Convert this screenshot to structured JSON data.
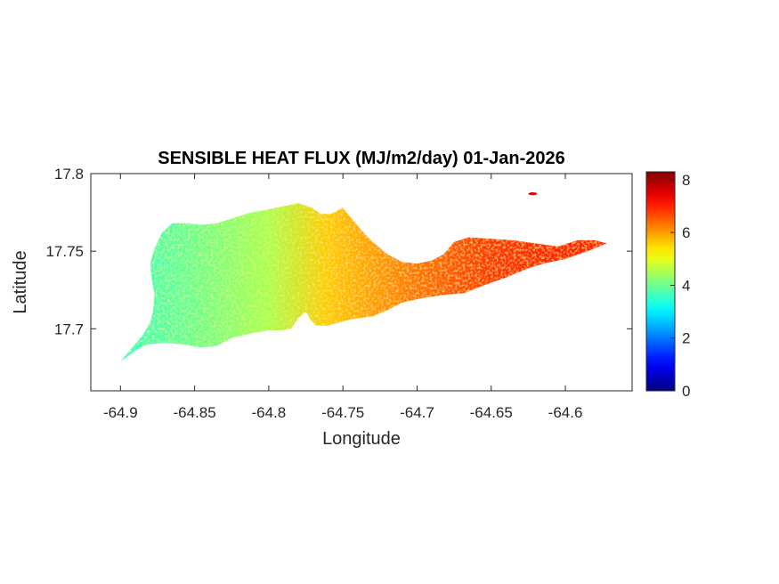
{
  "chart_data": {
    "type": "heatmap",
    "title": "SENSIBLE HEAT FLUX (MJ/m2/day) 01-Jan-2026",
    "xlabel": "Longitude",
    "ylabel": "Latitude",
    "xlim": [
      -64.92,
      -64.555
    ],
    "ylim": [
      17.66,
      17.8
    ],
    "xticks": [
      -64.9,
      -64.85,
      -64.8,
      -64.75,
      -64.7,
      -64.65,
      -64.6
    ],
    "xtick_labels": [
      "-64.9",
      "-64.85",
      "-64.8",
      "-64.75",
      "-64.7",
      "-64.65",
      "-64.6"
    ],
    "yticks": [
      17.7,
      17.75,
      17.8
    ],
    "ytick_labels": [
      "17.7",
      "17.75",
      "17.8"
    ],
    "colorbar": {
      "colormap": "jet",
      "range": [
        0,
        8.3
      ],
      "ticks": [
        0,
        2,
        4,
        6,
        8
      ],
      "tick_labels": [
        "0",
        "2",
        "4",
        "6",
        "8"
      ]
    },
    "region": {
      "outline": [
        [
          -64.9,
          17.679
        ],
        [
          -64.892,
          17.688
        ],
        [
          -64.885,
          17.696
        ],
        [
          -64.88,
          17.704
        ],
        [
          -64.878,
          17.712
        ],
        [
          -64.877,
          17.722
        ],
        [
          -64.879,
          17.732
        ],
        [
          -64.88,
          17.742
        ],
        [
          -64.877,
          17.752
        ],
        [
          -64.872,
          17.762
        ],
        [
          -64.865,
          17.768
        ],
        [
          -64.855,
          17.768
        ],
        [
          -64.845,
          17.767
        ],
        [
          -64.835,
          17.768
        ],
        [
          -64.825,
          17.771
        ],
        [
          -64.812,
          17.775
        ],
        [
          -64.8,
          17.777
        ],
        [
          -64.79,
          17.779
        ],
        [
          -64.78,
          17.781
        ],
        [
          -64.771,
          17.778
        ],
        [
          -64.765,
          17.774
        ],
        [
          -64.758,
          17.774
        ],
        [
          -64.75,
          17.778
        ],
        [
          -64.745,
          17.772
        ],
        [
          -64.738,
          17.764
        ],
        [
          -64.73,
          17.756
        ],
        [
          -64.72,
          17.748
        ],
        [
          -64.71,
          17.743
        ],
        [
          -64.7,
          17.742
        ],
        [
          -64.69,
          17.744
        ],
        [
          -64.682,
          17.748
        ],
        [
          -64.675,
          17.756
        ],
        [
          -64.665,
          17.759
        ],
        [
          -64.65,
          17.758
        ],
        [
          -64.635,
          17.757
        ],
        [
          -64.62,
          17.755
        ],
        [
          -64.605,
          17.753
        ],
        [
          -64.592,
          17.757
        ],
        [
          -64.58,
          17.757
        ],
        [
          -64.572,
          17.755
        ],
        [
          -64.585,
          17.75
        ],
        [
          -64.6,
          17.745
        ],
        [
          -64.615,
          17.742
        ],
        [
          -64.625,
          17.739
        ],
        [
          -64.64,
          17.733
        ],
        [
          -64.655,
          17.728
        ],
        [
          -64.668,
          17.723
        ],
        [
          -64.68,
          17.722
        ],
        [
          -64.695,
          17.72
        ],
        [
          -64.71,
          17.717
        ],
        [
          -64.72,
          17.712
        ],
        [
          -64.73,
          17.708
        ],
        [
          -64.745,
          17.706
        ],
        [
          -64.76,
          17.702
        ],
        [
          -64.768,
          17.702
        ],
        [
          -64.772,
          17.706
        ],
        [
          -64.775,
          17.711
        ],
        [
          -64.78,
          17.707
        ],
        [
          -64.785,
          17.7
        ],
        [
          -64.792,
          17.699
        ],
        [
          -64.8,
          17.699
        ],
        [
          -64.812,
          17.697
        ],
        [
          -64.825,
          17.694
        ],
        [
          -64.835,
          17.689
        ],
        [
          -64.845,
          17.688
        ],
        [
          -64.858,
          17.69
        ],
        [
          -64.87,
          17.691
        ],
        [
          -64.882,
          17.69
        ],
        [
          -64.89,
          17.686
        ],
        [
          -64.898,
          17.68
        ],
        [
          -64.9,
          17.679
        ]
      ],
      "gradient_stops": [
        {
          "lon": -64.9,
          "value": 3.6
        },
        {
          "lon": -64.85,
          "value": 4.0
        },
        {
          "lon": -64.8,
          "value": 4.5
        },
        {
          "lon": -64.76,
          "value": 5.6
        },
        {
          "lon": -64.7,
          "value": 6.3
        },
        {
          "lon": -64.65,
          "value": 6.8
        },
        {
          "lon": -64.6,
          "value": 7.0
        }
      ],
      "islet": {
        "lon": -64.622,
        "lat": 17.787,
        "value": 7.5
      }
    }
  }
}
